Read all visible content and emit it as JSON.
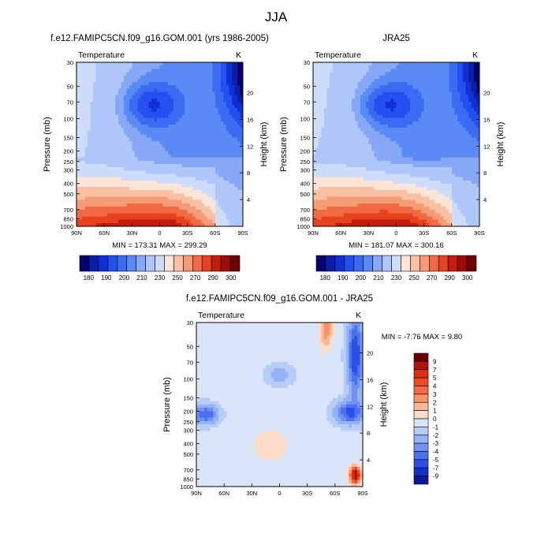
{
  "figure": {
    "title": "JJA"
  },
  "chart_data": [
    {
      "type": "heatmap",
      "title": "f.e12.FAMIPC5CN.f09_g16.GOM.001 (yrs 1986-2005)",
      "left_string": "Temperature",
      "right_string": "K",
      "ylabel": "Pressure (mb)",
      "y2label": "Height (km)",
      "x_ticks": [
        "90N",
        "60N",
        "30N",
        "0",
        "30S",
        "60S",
        "90S"
      ],
      "y_ticks": [
        30,
        50,
        70,
        100,
        150,
        200,
        250,
        300,
        400,
        500,
        700,
        850,
        1000
      ],
      "y_log": true,
      "height_ticks": [
        4,
        8,
        12,
        16,
        20
      ],
      "stats": "MIN = 173.31   MAX = 299.29",
      "colorbar_labels": [
        "180",
        "190",
        "200",
        "210",
        "230",
        "250",
        "270",
        "290",
        "300"
      ],
      "colorbar_placement": "bottom"
    },
    {
      "type": "heatmap",
      "title": "JRA25",
      "left_string": "Temperature",
      "right_string": "K",
      "ylabel": "Pressure (mb)",
      "y2label": "Height (km)",
      "x_ticks": [
        "90N",
        "60N",
        "30N",
        "0",
        "30S",
        "60S",
        "90S"
      ],
      "y_ticks": [
        30,
        50,
        70,
        100,
        150,
        200,
        250,
        300,
        400,
        500,
        700,
        850,
        1000
      ],
      "y_log": true,
      "height_ticks": [
        4,
        8,
        12,
        16,
        20
      ],
      "stats": "MIN = 181.07   MAX = 300.16",
      "colorbar_labels": [
        "180",
        "190",
        "200",
        "210",
        "230",
        "250",
        "270",
        "290",
        "300"
      ],
      "colorbar_placement": "bottom"
    },
    {
      "type": "heatmap",
      "title": "f.e12.FAMIPC5CN.f09_g16.GOM.001 - JRA25",
      "left_string": "Temperature",
      "right_string": "K",
      "ylabel": "Pressure (mb)",
      "y2label": "Height (km)",
      "x_ticks": [
        "90N",
        "60N",
        "30N",
        "0",
        "30S",
        "60S",
        "90S"
      ],
      "y_ticks": [
        30,
        50,
        70,
        100,
        150,
        200,
        250,
        300,
        400,
        500,
        700,
        850,
        1000
      ],
      "y_log": true,
      "height_ticks": [
        4,
        8,
        12,
        16,
        20
      ],
      "stats": "MIN =  -7.76   MAX =   9.80",
      "colorbar_labels": [
        "9",
        "7",
        "5",
        "4",
        "3",
        "2",
        "1",
        "0",
        "-1",
        "-2",
        "-3",
        "-4",
        "-5",
        "-7",
        "-9"
      ],
      "colorbar_placement": "right"
    }
  ],
  "palette": {
    "temp": [
      "#08006b",
      "#0a1ea8",
      "#1030d6",
      "#2350ee",
      "#3a6bf2",
      "#5a8af5",
      "#86a8f6",
      "#afc6f8",
      "#cddcfa",
      "#fce4d6",
      "#f9c0a3",
      "#f59b75",
      "#f16a44",
      "#e6421e",
      "#c51d0b",
      "#9e0d05",
      "#6e0002"
    ],
    "diff": [
      "#6e0002",
      "#b11406",
      "#d92e10",
      "#ee4a21",
      "#f46c41",
      "#f79368",
      "#fab995",
      "#fcdcc8",
      "#d9e5fb",
      "#b7cdf8",
      "#94b2f6",
      "#6f92f3",
      "#4a72ee",
      "#2a4fe6",
      "#1530c8",
      "#0a1796"
    ]
  }
}
